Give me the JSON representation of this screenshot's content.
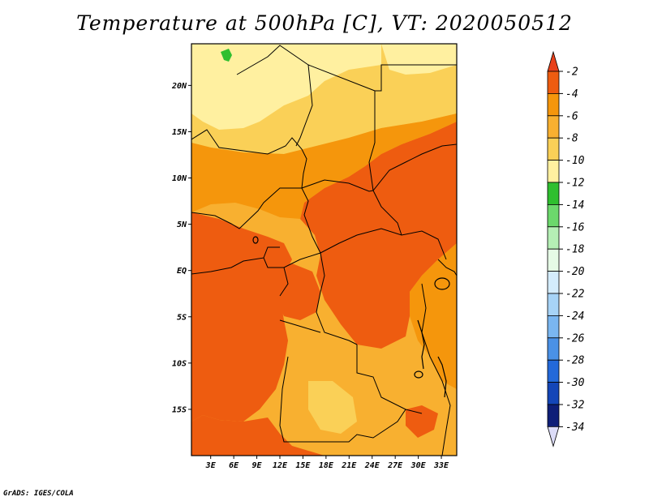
{
  "title": "Temperature at 500hPa [C], VT: 2020050512",
  "credit": "GrADS: IGES/COLA",
  "map": {
    "lat_labels": [
      {
        "label": "20N",
        "lat": 20
      },
      {
        "label": "15N",
        "lat": 15
      },
      {
        "label": "10N",
        "lat": 10
      },
      {
        "label": "5N",
        "lat": 5
      },
      {
        "label": "EQ",
        "lat": 0
      },
      {
        "label": "5S",
        "lat": -5
      },
      {
        "label": "10S",
        "lat": -10
      },
      {
        "label": "15S",
        "lat": -15
      }
    ],
    "lon_labels": [
      {
        "label": "3E",
        "lon": 3
      },
      {
        "label": "6E",
        "lon": 6
      },
      {
        "label": "9E",
        "lon": 9
      },
      {
        "label": "12E",
        "lon": 12
      },
      {
        "label": "15E",
        "lon": 15
      },
      {
        "label": "18E",
        "lon": 18
      },
      {
        "label": "21E",
        "lon": 21
      },
      {
        "label": "24E",
        "lon": 24
      },
      {
        "label": "27E",
        "lon": 27
      },
      {
        "label": "30E",
        "lon": 30
      },
      {
        "label": "33E",
        "lon": 33
      }
    ],
    "lon_range": [
      0.5,
      35
    ],
    "lat_range": [
      -20,
      24.5
    ]
  },
  "colorbar": {
    "labels": [
      "-2",
      "-4",
      "-6",
      "-8",
      "-10",
      "-12",
      "-14",
      "-16",
      "-18",
      "-20",
      "-22",
      "-24",
      "-26",
      "-28",
      "-30",
      "-32",
      "-34"
    ],
    "top_color": "#e8401a",
    "bottom_color": "#dcdcf8",
    "colors": [
      "#ee5c10",
      "#f5960c",
      "#f8b030",
      "#fad057",
      "#fff0a0",
      "#2fbf2f",
      "#6cd86c",
      "#b5efb5",
      "#e6fae6",
      "#d4ecfc",
      "#a7d3f6",
      "#7ab6f0",
      "#4a91e6",
      "#2369da",
      "#1446b8",
      "#0e1e78"
    ]
  },
  "colors": {
    "t_minus4": "#ee5c10",
    "t_minus6": "#f5960c",
    "t_minus8": "#f8b030",
    "t_minus10": "#fad057",
    "t_minus12": "#fff0a0",
    "t_green": "#2fbf2f"
  }
}
